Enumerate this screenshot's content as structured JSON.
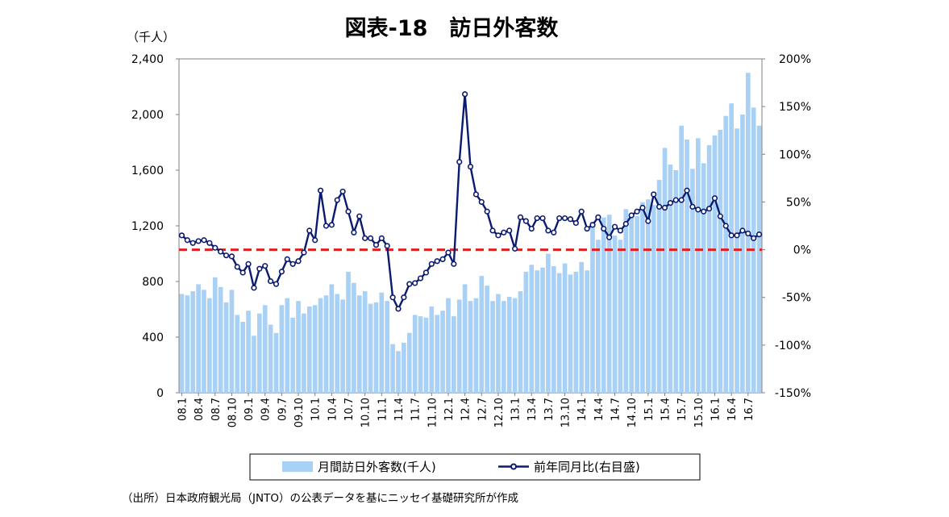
{
  "chart_data": {
    "type": "bar+line",
    "title": "図表-18　訪日外客数",
    "y_left_unit": "（千人）",
    "y_left_lim": [
      0,
      2400
    ],
    "y_left_ticks": [
      "0",
      "400",
      "800",
      "1,200",
      "1,600",
      "2,000",
      "2,400"
    ],
    "y_right_lim": [
      -150,
      200
    ],
    "y_right_ticks": [
      "-150%",
      "-100%",
      "-50%",
      "0%",
      "50%",
      "100%",
      "150%",
      "200%"
    ],
    "x_tick_labels": [
      "08.1",
      "08.4",
      "08.7",
      "08.10",
      "09.1",
      "09.4",
      "09.7",
      "09.10",
      "10.1",
      "10.4",
      "10.7",
      "10.10",
      "11.1",
      "11.4",
      "11.7",
      "11.10",
      "12.1",
      "12.4",
      "12.7",
      "12.10",
      "13.1",
      "13.4",
      "13.7",
      "13.10",
      "14.1",
      "14.4",
      "14.7",
      "14.10",
      "15.1",
      "15.4",
      "15.7",
      "15.10",
      "16.1",
      "16.4",
      "16.7"
    ],
    "months_start": "2008.1",
    "months_end": "2016.9",
    "series": [
      {
        "name": "月間訪日外客数(千人)",
        "kind": "bar",
        "axis": "left",
        "color": "#a9d0f5",
        "values": [
          710,
          700,
          730,
          780,
          740,
          680,
          830,
          760,
          650,
          740,
          560,
          510,
          590,
          410,
          570,
          630,
          490,
          430,
          630,
          680,
          540,
          660,
          570,
          620,
          630,
          680,
          700,
          780,
          710,
          670,
          870,
          790,
          700,
          730,
          640,
          650,
          720,
          660,
          350,
          300,
          360,
          430,
          560,
          550,
          540,
          620,
          560,
          590,
          680,
          550,
          670,
          780,
          660,
          680,
          840,
          770,
          660,
          710,
          660,
          690,
          680,
          730,
          870,
          920,
          880,
          900,
          1000,
          910,
          860,
          930,
          850,
          870,
          940,
          880,
          1230,
          1100,
          1260,
          1280,
          1130,
          1100,
          1320,
          1290,
          1270,
          1370,
          1390,
          1350,
          1530,
          1760,
          1640,
          1600,
          1920,
          1820,
          1610,
          1830,
          1650,
          1780,
          1850,
          1890,
          1990,
          2080,
          1900,
          2000,
          2300,
          2050,
          1920
        ]
      },
      {
        "name": "前年同月比(右目盛)",
        "kind": "line",
        "axis": "right",
        "color": "#0a1a6e",
        "values": [
          15,
          10,
          7,
          9,
          10,
          7,
          2,
          -2,
          -6,
          -7,
          -18,
          -24,
          -15,
          -40,
          -20,
          -17,
          -33,
          -36,
          -23,
          -10,
          -15,
          -12,
          -3,
          20,
          10,
          62,
          25,
          26,
          52,
          61,
          40,
          18,
          35,
          12,
          12,
          5,
          12,
          4,
          -50,
          -62,
          -50,
          -36,
          -35,
          -30,
          -24,
          -15,
          -12,
          -10,
          -3,
          -15,
          92,
          163,
          87,
          58,
          50,
          40,
          20,
          15,
          18,
          20,
          1,
          34,
          30,
          22,
          33,
          33,
          20,
          18,
          33,
          33,
          32,
          28,
          40,
          22,
          26,
          34,
          22,
          13,
          24,
          20,
          27,
          36,
          40,
          44,
          30,
          58,
          45,
          44,
          49,
          52,
          52,
          62,
          45,
          42,
          40,
          43,
          54,
          35,
          25,
          15,
          15,
          20,
          17,
          12,
          16
        ]
      }
    ],
    "reference_line": {
      "value": 0,
      "axis": "right",
      "color": "#e02020",
      "style": "dashed"
    },
    "legend_position": "bottom",
    "grid": false
  },
  "source_note": "（出所）日本政府観光局（JNTO）の公表データを基にニッセイ基礎研究所が作成"
}
